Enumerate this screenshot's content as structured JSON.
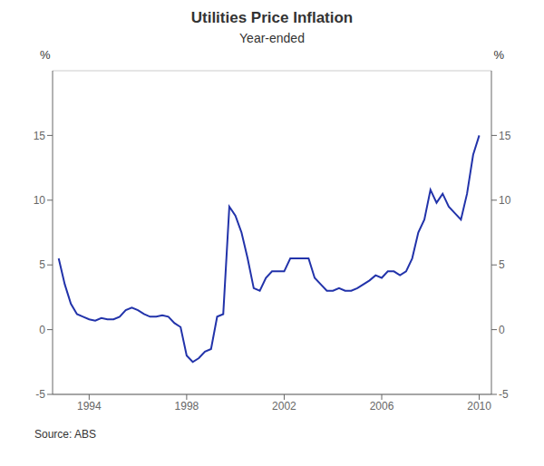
{
  "chart_data": {
    "type": "line",
    "title": "Utilities Price Inflation",
    "subtitle": "Year-ended",
    "source": "Source: ABS",
    "y_label": "%",
    "y2_label": "%",
    "x": [
      1992.75,
      1993.0,
      1993.25,
      1993.5,
      1993.75,
      1994.0,
      1994.25,
      1994.5,
      1994.75,
      1995.0,
      1995.25,
      1995.5,
      1995.75,
      1996.0,
      1996.25,
      1996.5,
      1996.75,
      1997.0,
      1997.25,
      1997.5,
      1997.75,
      1998.0,
      1998.25,
      1998.5,
      1998.75,
      1999.0,
      1999.25,
      1999.5,
      1999.75,
      2000.0,
      2000.25,
      2000.5,
      2000.75,
      2001.0,
      2001.25,
      2001.5,
      2001.75,
      2002.0,
      2002.25,
      2002.5,
      2002.75,
      2003.0,
      2003.25,
      2003.5,
      2003.75,
      2004.0,
      2004.25,
      2004.5,
      2004.75,
      2005.0,
      2005.25,
      2005.5,
      2005.75,
      2006.0,
      2006.25,
      2006.5,
      2006.75,
      2007.0,
      2007.25,
      2007.5,
      2007.75,
      2008.0,
      2008.25,
      2008.5,
      2008.75,
      2009.0,
      2009.25,
      2009.5,
      2009.75,
      2010.0
    ],
    "values": [
      5.5,
      3.5,
      2.0,
      1.2,
      1.0,
      0.8,
      0.7,
      0.9,
      0.8,
      0.8,
      1.0,
      1.5,
      1.7,
      1.5,
      1.2,
      1.0,
      1.0,
      1.1,
      1.0,
      0.5,
      0.2,
      -2.0,
      -2.5,
      -2.2,
      -1.7,
      -1.5,
      1.0,
      1.2,
      9.5,
      8.8,
      7.5,
      5.5,
      3.2,
      3.0,
      4.0,
      4.5,
      4.5,
      4.5,
      5.5,
      5.5,
      5.5,
      5.5,
      4.0,
      3.5,
      3.0,
      3.0,
      3.2,
      3.0,
      3.0,
      3.2,
      3.5,
      3.8,
      4.2,
      4.0,
      4.5,
      4.5,
      4.2,
      4.5,
      5.5,
      7.5,
      8.5,
      10.8,
      9.8,
      10.5,
      9.5,
      9.0,
      8.5,
      10.5,
      13.5,
      15.0
    ],
    "color": "#2233AA",
    "xlim": [
      1992.5,
      2010.5
    ],
    "xticks": [
      1994,
      1998,
      2002,
      2006,
      2010
    ],
    "ylim": [
      -5,
      20
    ],
    "yticks": [
      -5,
      0,
      5,
      10,
      15
    ],
    "y2lim": [
      -5,
      20
    ],
    "y2ticks": [
      -5,
      0,
      5,
      10,
      15
    ],
    "grid": true
  }
}
